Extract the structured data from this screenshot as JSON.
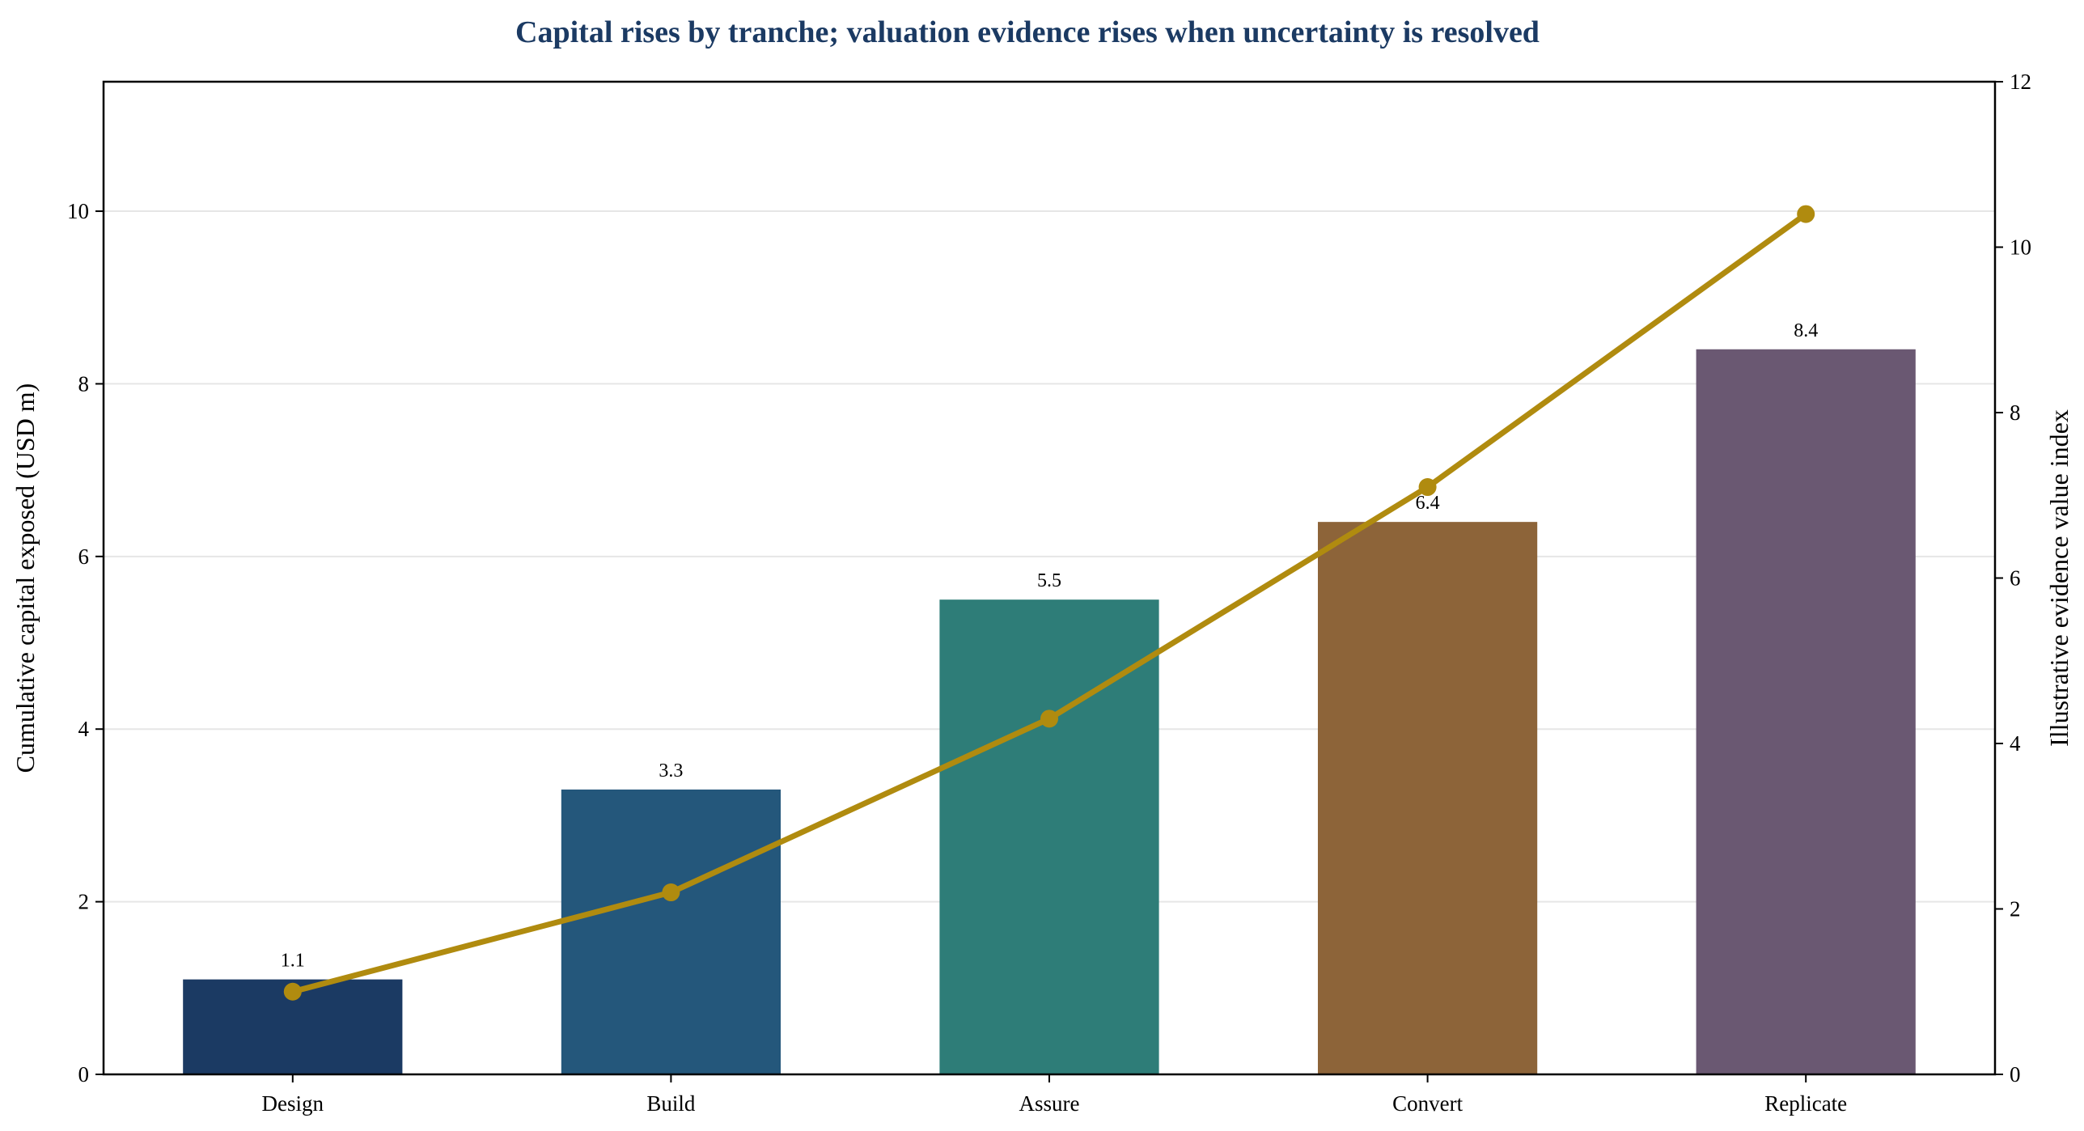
{
  "chart_data": {
    "type": "bar",
    "title": "Capital rises by tranche; valuation evidence rises when uncertainty is resolved",
    "categories": [
      "Design",
      "Build",
      "Assure",
      "Convert",
      "Replicate"
    ],
    "series": [
      {
        "kind": "bar",
        "axis": "left",
        "values": [
          1.1,
          3.3,
          5.5,
          6.4,
          8.4
        ],
        "labels": [
          "1.1",
          "3.3",
          "5.5",
          "6.4",
          "8.4"
        ],
        "colors": [
          "#1b3a63",
          "#24577b",
          "#2e7d78",
          "#8d6439",
          "#6a5872"
        ]
      },
      {
        "kind": "line",
        "axis": "right",
        "values": [
          1.0,
          2.2,
          4.3,
          7.1,
          10.4
        ],
        "color": "#b08b0f"
      }
    ],
    "ylabel": "Cumulative capital exposed (USD m)",
    "y2label": "Illustrative evidence value index",
    "ylim": [
      0,
      11.5
    ],
    "y2lim": [
      0,
      12
    ],
    "yticks": [
      "0",
      "2",
      "4",
      "6",
      "8",
      "10"
    ],
    "y2ticks": [
      "0",
      "2",
      "4",
      "6",
      "8",
      "10",
      "12"
    ],
    "grid": "horizontal",
    "title_color": "#1b3a63"
  }
}
